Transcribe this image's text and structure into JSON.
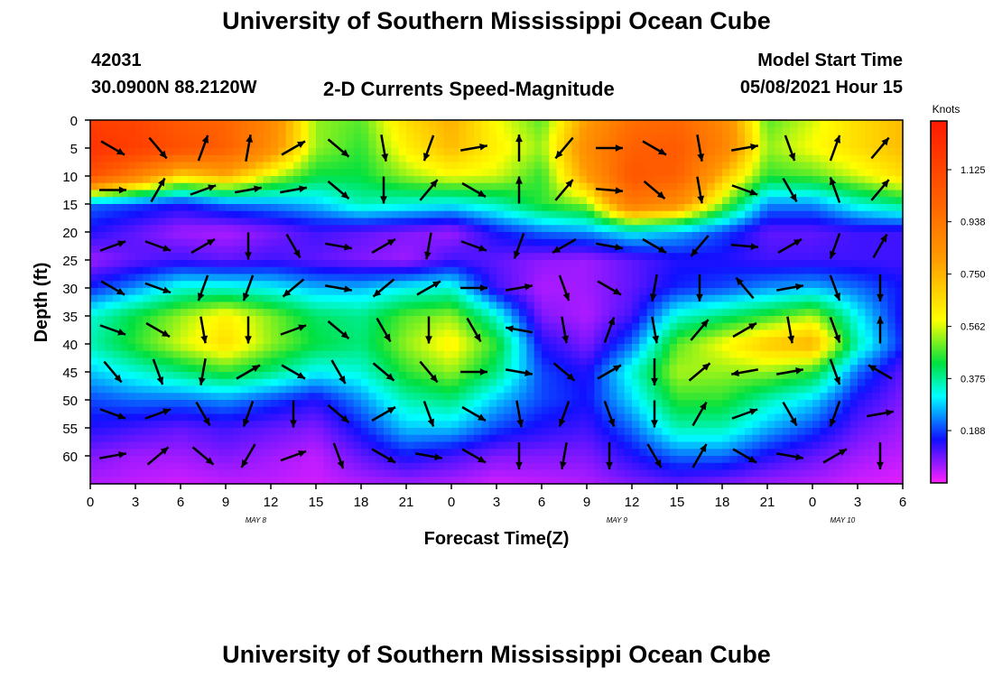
{
  "chart_data": {
    "type": "heatmap",
    "title": "University of Southern Mississippi Ocean Cube",
    "footer_title": "University of Southern Mississippi Ocean Cube",
    "station_id": "42031",
    "location": "30.0900N  88.2120W",
    "subtitle": "2-D Currents Speed-Magnitude",
    "model_start_label": "Model Start Time",
    "model_start_value": "05/08/2021 Hour 15",
    "xlabel": "Forecast Time(Z)",
    "ylabel": "Depth (ft)",
    "x_hours_range": [
      0,
      54
    ],
    "ylim": [
      0,
      65
    ],
    "x_tick_labels": [
      "0",
      "3",
      "6",
      "9",
      "12",
      "15",
      "18",
      "21",
      "0",
      "3",
      "6",
      "9",
      "12",
      "15",
      "18",
      "21",
      "0",
      "3",
      "6"
    ],
    "y_ticks": [
      0,
      5,
      10,
      15,
      20,
      25,
      30,
      35,
      40,
      45,
      50,
      55,
      60
    ],
    "date_labels": [
      {
        "label": "MAY 8",
        "hour": 11
      },
      {
        "label": "MAY 9",
        "hour": 35
      },
      {
        "label": "MAY 10",
        "hour": 50
      }
    ],
    "colorbar": {
      "unit": "Knots",
      "range": [
        0,
        1.3
      ],
      "ticks": [
        "1.125",
        "0.938",
        "0.750",
        "0.562",
        "0.375",
        "0.188"
      ],
      "tick_values": [
        1.125,
        0.938,
        0.75,
        0.562,
        0.375,
        0.188
      ]
    },
    "speed_grid": {
      "x_hours": [
        0,
        3,
        6,
        9,
        12,
        15,
        18,
        21,
        24,
        27,
        30,
        33,
        36,
        39,
        42,
        45,
        48,
        51,
        54
      ],
      "depths_ft": [
        0,
        5,
        10,
        15,
        20,
        25,
        30,
        35,
        40,
        45,
        50,
        55,
        60,
        65
      ],
      "values": [
        [
          1.05,
          1.02,
          0.9,
          0.86,
          0.72,
          0.45,
          0.42,
          0.55,
          0.62,
          0.5,
          0.42,
          0.65,
          0.82,
          0.85,
          0.72,
          0.42,
          0.48,
          0.55,
          0.6
        ],
        [
          1.12,
          1.05,
          0.95,
          0.88,
          0.7,
          0.45,
          0.4,
          0.52,
          0.6,
          0.52,
          0.45,
          0.7,
          0.88,
          0.9,
          0.75,
          0.45,
          0.5,
          0.55,
          0.6
        ],
        [
          0.95,
          0.75,
          0.55,
          0.62,
          0.48,
          0.38,
          0.38,
          0.45,
          0.5,
          0.48,
          0.4,
          0.65,
          0.92,
          0.88,
          0.6,
          0.4,
          0.42,
          0.48,
          0.55
        ],
        [
          0.2,
          0.18,
          0.15,
          0.2,
          0.22,
          0.25,
          0.32,
          0.3,
          0.28,
          0.32,
          0.4,
          0.45,
          0.78,
          0.7,
          0.45,
          0.22,
          0.22,
          0.3,
          0.35
        ],
        [
          0.14,
          0.1,
          0.06,
          0.05,
          0.08,
          0.12,
          0.1,
          0.08,
          0.06,
          0.15,
          0.2,
          0.22,
          0.28,
          0.24,
          0.18,
          0.1,
          0.1,
          0.12,
          0.12
        ],
        [
          0.06,
          0.1,
          0.12,
          0.1,
          0.12,
          0.1,
          0.08,
          0.06,
          0.12,
          0.1,
          0.07,
          0.06,
          0.1,
          0.14,
          0.14,
          0.12,
          0.12,
          0.12,
          0.12
        ],
        [
          0.16,
          0.22,
          0.3,
          0.3,
          0.28,
          0.24,
          0.24,
          0.28,
          0.3,
          0.12,
          0.05,
          0.06,
          0.1,
          0.16,
          0.18,
          0.22,
          0.24,
          0.2,
          0.15
        ],
        [
          0.3,
          0.38,
          0.45,
          0.52,
          0.44,
          0.36,
          0.34,
          0.42,
          0.45,
          0.3,
          0.08,
          0.05,
          0.12,
          0.3,
          0.35,
          0.4,
          0.46,
          0.28,
          0.14
        ],
        [
          0.32,
          0.4,
          0.48,
          0.55,
          0.45,
          0.38,
          0.35,
          0.45,
          0.52,
          0.4,
          0.14,
          0.08,
          0.2,
          0.42,
          0.5,
          0.58,
          0.62,
          0.32,
          0.16
        ],
        [
          0.25,
          0.3,
          0.35,
          0.4,
          0.35,
          0.28,
          0.3,
          0.4,
          0.45,
          0.35,
          0.18,
          0.14,
          0.3,
          0.46,
          0.45,
          0.45,
          0.4,
          0.2,
          0.1
        ],
        [
          0.18,
          0.2,
          0.2,
          0.22,
          0.18,
          0.14,
          0.22,
          0.32,
          0.35,
          0.25,
          0.18,
          0.15,
          0.26,
          0.4,
          0.4,
          0.32,
          0.26,
          0.14,
          0.08
        ],
        [
          0.14,
          0.12,
          0.1,
          0.12,
          0.1,
          0.08,
          0.16,
          0.25,
          0.25,
          0.18,
          0.14,
          0.12,
          0.2,
          0.32,
          0.32,
          0.24,
          0.18,
          0.1,
          0.06
        ],
        [
          0.08,
          0.06,
          0.06,
          0.08,
          0.06,
          0.04,
          0.1,
          0.15,
          0.12,
          0.08,
          0.08,
          0.08,
          0.14,
          0.2,
          0.2,
          0.14,
          0.1,
          0.06,
          0.04
        ],
        [
          0.05,
          0.04,
          0.03,
          0.04,
          0.04,
          0.03,
          0.05,
          0.06,
          0.05,
          0.03,
          0.04,
          0.05,
          0.08,
          0.1,
          0.08,
          0.06,
          0.05,
          0.03,
          0.02
        ]
      ]
    },
    "vectors": {
      "x_hours": [
        1.5,
        4.5,
        7.5,
        10.5,
        13.5,
        16.5,
        19.5,
        22.5,
        25.5,
        28.5,
        31.5,
        34.5,
        37.5,
        40.5,
        43.5,
        46.5,
        49.5,
        52.5
      ],
      "depths_ft": [
        5,
        12.5,
        22.5,
        30,
        37.5,
        45,
        52.5,
        60
      ],
      "directions_deg": [
        [
          120,
          140,
          20,
          10,
          60,
          130,
          170,
          200,
          80,
          0,
          220,
          90,
          120,
          170,
          80,
          160,
          20,
          40
        ],
        [
          90,
          30,
          70,
          80,
          80,
          130,
          180,
          40,
          120,
          0,
          40,
          95,
          130,
          170,
          110,
          150,
          340,
          40
        ],
        [
          70,
          110,
          60,
          180,
          150,
          100,
          60,
          190,
          110,
          200,
          240,
          100,
          120,
          220,
          95,
          60,
          200,
          30
        ],
        [
          120,
          110,
          200,
          200,
          230,
          100,
          230,
          60,
          90,
          80,
          160,
          120,
          190,
          180,
          320,
          80,
          160,
          180
        ],
        [
          110,
          120,
          170,
          180,
          70,
          130,
          150,
          180,
          150,
          280,
          170,
          20,
          170,
          40,
          60,
          170,
          160,
          0
        ],
        [
          140,
          160,
          190,
          60,
          120,
          150,
          130,
          140,
          90,
          100,
          130,
          60,
          180,
          50,
          260,
          80,
          160,
          300
        ],
        [
          110,
          70,
          150,
          200,
          180,
          130,
          60,
          160,
          120,
          170,
          200,
          160,
          180,
          30,
          70,
          150,
          200,
          80
        ],
        [
          80,
          50,
          130,
          210,
          70,
          160,
          120,
          100,
          120,
          180,
          190,
          180,
          150,
          30,
          120,
          100,
          60,
          180
        ]
      ]
    }
  }
}
